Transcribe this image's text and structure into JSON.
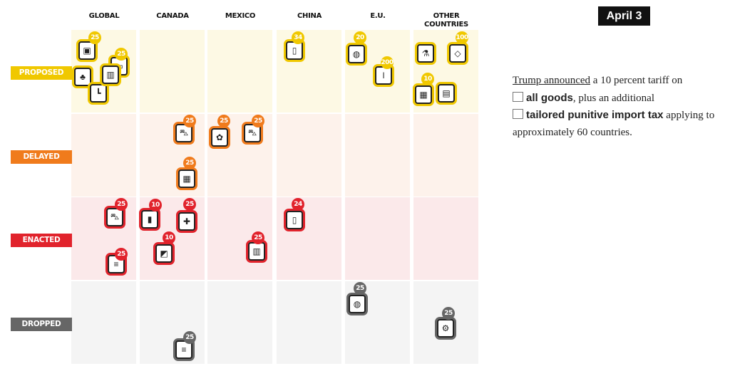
{
  "columns": [
    "GLOBAL",
    "CANADA",
    "MEXICO",
    "CHINA",
    "E.U.",
    "OTHER COUNTRIES"
  ],
  "rows": [
    {
      "label": "PROPOSED",
      "color": "#f0c800",
      "bg": "#fdf9e4"
    },
    {
      "label": "DELAYED",
      "color": "#f07b1c",
      "bg": "#fdf2eb"
    },
    {
      "label": "ENACTED",
      "color": "#e1232c",
      "bg": "#fbe9ea"
    },
    {
      "label": "DROPPED",
      "color": "#666666",
      "bg": "#f4f4f4"
    }
  ],
  "date": "April 3",
  "description": {
    "link": "Trump announced",
    "t1": " a 10 percent tariff on",
    "b1": "all goods",
    "t2": ", plus an additional",
    "b2": "tailored punitive import tax",
    "t3": " applying to approximately 60 countries.",
    "icon1": "pallet-icon",
    "icon2": "stacked-boxes-icon"
  },
  "items": [
    {
      "row": 0,
      "col": 0,
      "icon": "microchip-icon",
      "badge": "25"
    },
    {
      "row": 0,
      "col": 0,
      "icon": "pill-icon",
      "badge": "25"
    },
    {
      "row": 0,
      "col": 0,
      "icon": "tree-lumber-icon",
      "badge": ""
    },
    {
      "row": 0,
      "col": 0,
      "icon": "pipe-copper-icon",
      "badge": ""
    },
    {
      "row": 0,
      "col": 0,
      "icon": "food-cans-icon",
      "badge": ""
    },
    {
      "row": 0,
      "col": 3,
      "icon": "phone-battery-icon",
      "badge": "34"
    },
    {
      "row": 0,
      "col": 4,
      "icon": "cosmetics-pills-icon",
      "badge": "20"
    },
    {
      "row": 0,
      "col": 4,
      "icon": "wine-bottle-icon",
      "badge": "200"
    },
    {
      "row": 0,
      "col": 5,
      "icon": "chemicals-icon",
      "badge": ""
    },
    {
      "row": 0,
      "col": 5,
      "icon": "gems-shrimp-icon",
      "badge": "100"
    },
    {
      "row": 0,
      "col": 5,
      "icon": "pallet-icon",
      "badge": "10"
    },
    {
      "row": 0,
      "col": 5,
      "icon": "stacked-boxes-icon",
      "badge": ""
    },
    {
      "row": 1,
      "col": 1,
      "icon": "car-icon",
      "badge": "25"
    },
    {
      "row": 1,
      "col": 1,
      "icon": "energy-grid-icon",
      "badge": "25"
    },
    {
      "row": 1,
      "col": 2,
      "icon": "produce-icon",
      "badge": "25"
    },
    {
      "row": 1,
      "col": 2,
      "icon": "car-icon",
      "badge": "25"
    },
    {
      "row": 2,
      "col": 0,
      "icon": "car-icon",
      "badge": "25"
    },
    {
      "row": 2,
      "col": 0,
      "icon": "steel-icon",
      "badge": "25"
    },
    {
      "row": 2,
      "col": 1,
      "icon": "oil-barrel-icon",
      "badge": "10"
    },
    {
      "row": 2,
      "col": 1,
      "icon": "potash-icon",
      "badge": "10"
    },
    {
      "row": 2,
      "col": 1,
      "icon": "lobster-goods-icon",
      "badge": "25"
    },
    {
      "row": 2,
      "col": 2,
      "icon": "beer-goods-icon",
      "badge": "25"
    },
    {
      "row": 2,
      "col": 3,
      "icon": "phone-battery-icon",
      "badge": "24"
    },
    {
      "row": 3,
      "col": 4,
      "icon": "cosmetics-pills-icon",
      "badge": "25"
    },
    {
      "row": 3,
      "col": 5,
      "icon": "machinery-icon",
      "badge": "25"
    },
    {
      "row": 3,
      "col": 1,
      "icon": "steel-icon",
      "badge": "25"
    }
  ]
}
